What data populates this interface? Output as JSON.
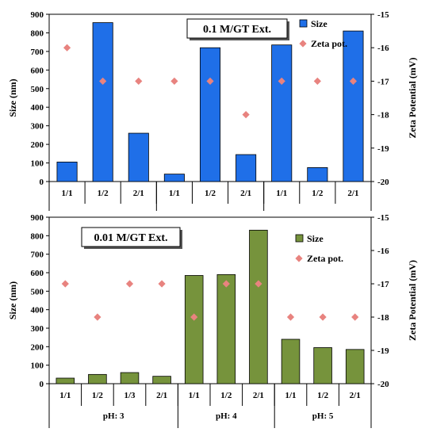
{
  "chart_data": [
    {
      "type": "bar",
      "annotation": "0.1 M/GT Ext.",
      "categories": [
        "1/1",
        "1/2",
        "2/1",
        "1/1",
        "1/2",
        "2/1",
        "1/1",
        "1/2",
        "2/1"
      ],
      "group_labels": [],
      "ylabel": "Size (nm)",
      "y2label": "Zeta Potential (mV)",
      "ylim": [
        0,
        900
      ],
      "yticks": [
        "0",
        "100",
        "200",
        "300",
        "400",
        "500",
        "600",
        "700",
        "800",
        "900"
      ],
      "y2lim": [
        -20,
        -15
      ],
      "y2ticks": [
        "-20",
        "-19",
        "-18",
        "-17",
        "-16",
        "-15"
      ],
      "bar_color": "#1f6fe8",
      "marker_color": "#e8837f",
      "legend_position": "top-right",
      "series": [
        {
          "name": "Size",
          "kind": "bar",
          "axis": "left",
          "values": [
            105,
            855,
            260,
            40,
            720,
            145,
            735,
            75,
            810
          ]
        },
        {
          "name": "Zeta pot.",
          "kind": "scatter",
          "axis": "right",
          "values": [
            -16,
            -17,
            -17,
            -17,
            -17,
            -18,
            -17,
            -17,
            -17
          ]
        }
      ]
    },
    {
      "type": "bar",
      "annotation": "0.01 M/GT Ext.",
      "categories": [
        "1/1",
        "1/2",
        "1/3",
        "2/1",
        "1/1",
        "1/2",
        "2/1",
        "1/1",
        "1/2",
        "2/1"
      ],
      "group_labels": [
        "pH: 3",
        "pH: 4",
        "pH: 5"
      ],
      "ylabel": "Size (nm)",
      "y2label": "Zeta Potential (mV)",
      "ylim": [
        0,
        900
      ],
      "yticks": [
        "0",
        "100",
        "200",
        "300",
        "400",
        "500",
        "600",
        "700",
        "800",
        "900"
      ],
      "y2lim": [
        -20,
        -15
      ],
      "y2ticks": [
        "-20",
        "-19",
        "-18",
        "-17",
        "-16",
        "-15"
      ],
      "bar_color": "#76933c",
      "marker_color": "#e8837f",
      "legend_position": "top-right",
      "series": [
        {
          "name": "Size",
          "kind": "bar",
          "axis": "left",
          "values": [
            30,
            50,
            60,
            40,
            585,
            590,
            830,
            240,
            195,
            185
          ]
        },
        {
          "name": "Zeta pot.",
          "kind": "scatter",
          "axis": "right",
          "values": [
            -17,
            -18,
            -17,
            -17,
            -18,
            -17,
            -17,
            -18,
            -18,
            -18
          ]
        }
      ]
    }
  ]
}
